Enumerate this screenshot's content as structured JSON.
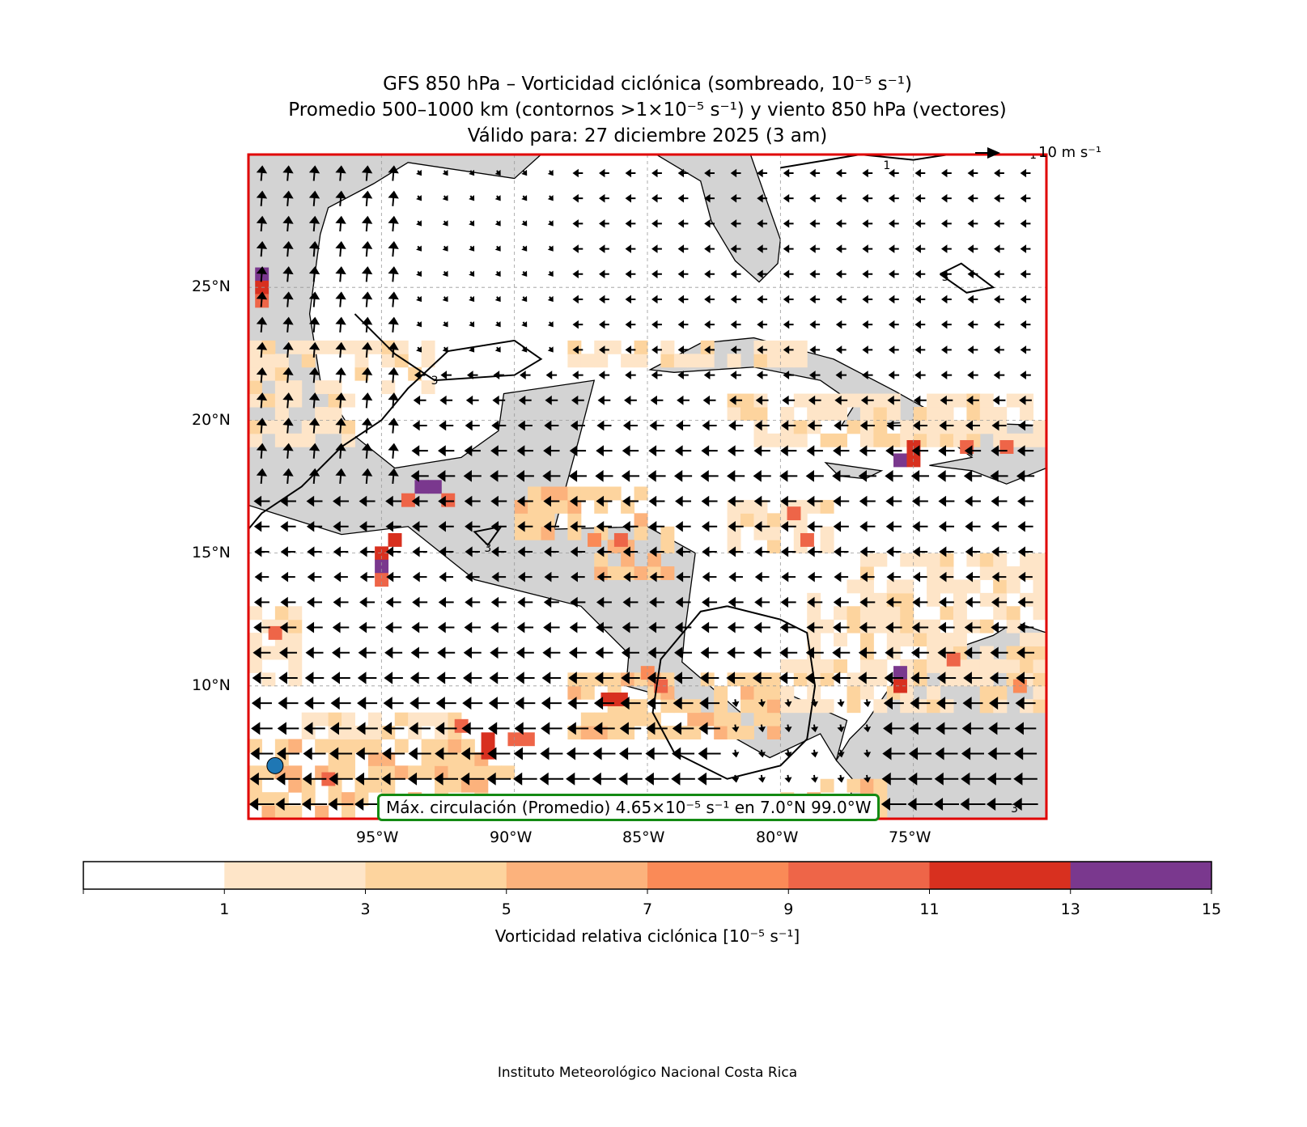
{
  "title": {
    "line1": "GFS 850 hPa – Vorticidad ciclónica (sombreado, 10⁻⁵ s⁻¹)",
    "line2": "Promedio 500–1000 km (contornos >1×10⁻⁵ s⁻¹) y viento 850 hPa (vectores)",
    "line3": "Válido para: 27 diciembre 2025 (3 am)"
  },
  "map": {
    "extent_lon": [
      -100,
      -70
    ],
    "extent_lat": [
      5,
      30
    ],
    "x_ticks": [
      "95°W",
      "90°W",
      "85°W",
      "80°W",
      "75°W"
    ],
    "y_ticks": [
      "25°N",
      "20°N",
      "15°N",
      "10°N"
    ],
    "quiver_key": "10 m s⁻¹",
    "land_color": "#d3d3d3",
    "frame_color": "#e00000",
    "contour_labels": [
      "3",
      "3",
      "3",
      "1",
      "1",
      "3"
    ],
    "max_point": {
      "lon": -99.0,
      "lat": 7.0,
      "color": "#1f77b4"
    },
    "annotation": "Máx. circulación (Promedio) 4.65×10⁻⁵ s⁻¹ en 7.0°N 99.0°W",
    "vorticity_regions": [
      [
        -100,
        5,
        -90,
        8,
        4
      ],
      [
        -98,
        8,
        -92,
        9,
        2
      ],
      [
        -88,
        8,
        -80,
        10.5,
        3
      ],
      [
        -80,
        9,
        -70,
        11,
        2
      ],
      [
        -79,
        11,
        -70,
        14,
        2
      ],
      [
        -77,
        13.5,
        -70,
        15,
        2
      ],
      [
        -88,
        22,
        -79,
        23,
        2
      ],
      [
        -82,
        19,
        -70,
        21,
        2
      ],
      [
        -90,
        15.5,
        -85,
        17.5,
        3
      ],
      [
        -96,
        21,
        -93,
        23,
        2
      ],
      [
        -100,
        19,
        -96,
        23,
        2
      ],
      [
        -87,
        14,
        -84,
        16,
        3
      ],
      [
        -100,
        10,
        -98,
        13,
        2
      ],
      [
        -80,
        5,
        -76,
        6.5,
        3
      ],
      [
        -82,
        15,
        -78,
        17,
        2
      ],
      [
        -73,
        9,
        -70,
        12,
        2
      ]
    ],
    "vorticity_cells": [
      [
        -93.5,
        17.5,
        14
      ],
      [
        -93,
        17.5,
        14
      ],
      [
        -92.5,
        17,
        10
      ],
      [
        -94,
        17,
        9
      ],
      [
        -95,
        15,
        12
      ],
      [
        -95,
        14.5,
        14
      ],
      [
        -95,
        14,
        10
      ],
      [
        -94.5,
        15.5,
        11
      ],
      [
        -75.5,
        18.5,
        14
      ],
      [
        -75,
        18.5,
        12
      ],
      [
        -75,
        19,
        11
      ],
      [
        -73,
        19,
        10
      ],
      [
        -71.5,
        19,
        9
      ],
      [
        -75.5,
        10.5,
        14
      ],
      [
        -75.5,
        10,
        12
      ],
      [
        -86.5,
        9.5,
        12
      ],
      [
        -86,
        9.5,
        11
      ],
      [
        -84.5,
        10,
        9
      ],
      [
        -85,
        10.5,
        8
      ],
      [
        -91,
        8,
        12
      ],
      [
        -91,
        7.5,
        11
      ],
      [
        -90,
        8,
        9
      ],
      [
        -89.5,
        8,
        10
      ],
      [
        -99.5,
        25.5,
        13
      ],
      [
        -99.5,
        25,
        11
      ],
      [
        -99.5,
        24.5,
        9
      ],
      [
        -71,
        10,
        8
      ],
      [
        -73.5,
        11,
        10
      ],
      [
        -86,
        15.5,
        9
      ],
      [
        -87,
        15.5,
        8
      ],
      [
        -79.5,
        16.5,
        9
      ],
      [
        -79,
        15.5,
        9
      ],
      [
        -99,
        12,
        9
      ],
      [
        -97,
        6.5,
        9
      ],
      [
        -92,
        8.5,
        10
      ]
    ]
  },
  "colorbar": {
    "levels": [
      0,
      1,
      3,
      5,
      7,
      9,
      11,
      13,
      15
    ],
    "tick_labels": [
      "1",
      "3",
      "5",
      "7",
      "9",
      "11",
      "13",
      "15"
    ],
    "colors": [
      "#ffffff",
      "#fee5c8",
      "#fdd49e",
      "#fcb27c",
      "#fa8a57",
      "#ee6548",
      "#d8301f",
      "#7a388e"
    ],
    "label": "Vorticidad relativa ciclónica [10⁻⁵ s⁻¹]"
  },
  "footer": "Instituto Meteorológico Nacional Costa Rica"
}
